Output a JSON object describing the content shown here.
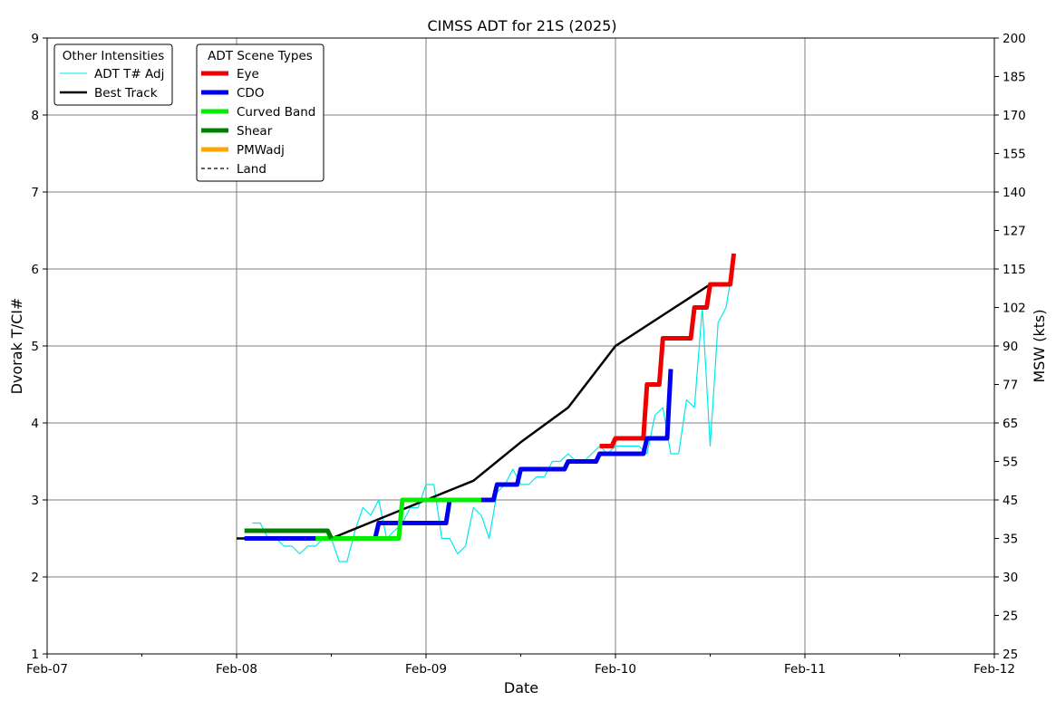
{
  "chart_data": {
    "type": "line",
    "title": "CIMSS ADT for 21S (2025)",
    "xlabel": "Date",
    "ylabel": "Dvorak T/CI#",
    "y2label": "MSW (kts)",
    "xlim": [
      "2025-02-07",
      "2025-02-12"
    ],
    "ylim": [
      1,
      9
    ],
    "grid": true,
    "x_tick_labels": [
      "Feb-07",
      "Feb-08",
      "Feb-09",
      "Feb-10",
      "Feb-11",
      "Feb-12"
    ],
    "y_ticks": [
      1,
      2,
      3,
      4,
      5,
      6,
      7,
      8,
      9
    ],
    "y2_ticks": [
      {
        "t": 1.0,
        "label": "25"
      },
      {
        "t": 1.5,
        "label": "25"
      },
      {
        "t": 2.0,
        "label": "30"
      },
      {
        "t": 2.5,
        "label": "35"
      },
      {
        "t": 3.0,
        "label": "45"
      },
      {
        "t": 3.5,
        "label": "55"
      },
      {
        "t": 4.0,
        "label": "65"
      },
      {
        "t": 4.5,
        "label": "77"
      },
      {
        "t": 5.0,
        "label": "90"
      },
      {
        "t": 5.5,
        "label": "102"
      },
      {
        "t": 6.0,
        "label": "115"
      },
      {
        "t": 6.5,
        "label": "127"
      },
      {
        "t": 7.0,
        "label": "140"
      },
      {
        "t": 7.5,
        "label": "155"
      },
      {
        "t": 8.0,
        "label": "170"
      },
      {
        "t": 8.5,
        "label": "185"
      },
      {
        "t": 9.0,
        "label": "200"
      }
    ],
    "legend_other": {
      "title": "Other Intensities",
      "placement": "top-left",
      "entries": [
        {
          "label": "ADT T# Adj",
          "color": "#00e8e8",
          "style": "thin"
        },
        {
          "label": "Best Track",
          "color": "#000000",
          "style": "solid"
        }
      ]
    },
    "legend_scene": {
      "title": "ADT Scene Types",
      "placement": "top-left",
      "entries": [
        {
          "label": "Eye",
          "color": "#ee0000",
          "style": "thick"
        },
        {
          "label": "CDO",
          "color": "#0000ee",
          "style": "thick"
        },
        {
          "label": "Curved Band",
          "color": "#00ee00",
          "style": "thick"
        },
        {
          "label": "Shear",
          "color": "#008000",
          "style": "thick"
        },
        {
          "label": "PMWadj",
          "color": "#ffa500",
          "style": "thick"
        },
        {
          "label": "Land",
          "color": "#000000",
          "style": "dashed"
        }
      ]
    },
    "series": [
      {
        "name": "ADT T# Adj",
        "color": "#00e8e8",
        "x": [
          "2025-02-08 02:00",
          "2025-02-08 03:00",
          "2025-02-08 04:00",
          "2025-02-08 05:00",
          "2025-02-08 06:00",
          "2025-02-08 07:00",
          "2025-02-08 08:00",
          "2025-02-08 09:00",
          "2025-02-08 10:00",
          "2025-02-08 11:00",
          "2025-02-08 12:00",
          "2025-02-08 13:00",
          "2025-02-08 14:00",
          "2025-02-08 15:00",
          "2025-02-08 16:00",
          "2025-02-08 17:00",
          "2025-02-08 18:00",
          "2025-02-08 19:00",
          "2025-02-08 20:00",
          "2025-02-08 21:00",
          "2025-02-08 22:00",
          "2025-02-08 23:00",
          "2025-02-09 00:00",
          "2025-02-09 01:00",
          "2025-02-09 02:00",
          "2025-02-09 03:00",
          "2025-02-09 04:00",
          "2025-02-09 05:00",
          "2025-02-09 06:00",
          "2025-02-09 07:00",
          "2025-02-09 08:00",
          "2025-02-09 09:00",
          "2025-02-09 10:00",
          "2025-02-09 11:00",
          "2025-02-09 12:00",
          "2025-02-09 13:00",
          "2025-02-09 14:00",
          "2025-02-09 15:00",
          "2025-02-09 16:00",
          "2025-02-09 17:00",
          "2025-02-09 18:00",
          "2025-02-09 19:00",
          "2025-02-09 20:00",
          "2025-02-09 21:00",
          "2025-02-09 22:00",
          "2025-02-09 23:00",
          "2025-02-10 00:00",
          "2025-02-10 01:00",
          "2025-02-10 02:00",
          "2025-02-10 03:00",
          "2025-02-10 04:00",
          "2025-02-10 05:00",
          "2025-02-10 06:00",
          "2025-02-10 07:00",
          "2025-02-10 08:00",
          "2025-02-10 09:00",
          "2025-02-10 10:00",
          "2025-02-10 11:00",
          "2025-02-10 12:00",
          "2025-02-10 13:00",
          "2025-02-10 14:00",
          "2025-02-10 15:00"
        ],
        "y": [
          2.7,
          2.7,
          2.5,
          2.5,
          2.4,
          2.4,
          2.3,
          2.4,
          2.4,
          2.5,
          2.5,
          2.2,
          2.2,
          2.6,
          2.9,
          2.8,
          3.0,
          2.5,
          2.6,
          2.7,
          2.9,
          2.9,
          3.2,
          3.2,
          2.5,
          2.5,
          2.3,
          2.4,
          2.9,
          2.8,
          2.5,
          3.1,
          3.2,
          3.4,
          3.2,
          3.2,
          3.3,
          3.3,
          3.5,
          3.5,
          3.6,
          3.5,
          3.5,
          3.6,
          3.7,
          3.6,
          3.7,
          3.7,
          3.7,
          3.7,
          3.6,
          4.1,
          4.2,
          3.6,
          3.6,
          4.3,
          4.2,
          5.5,
          3.7,
          5.3,
          5.5,
          6.1
        ]
      },
      {
        "name": "Best Track",
        "color": "#000000",
        "x": [
          "2025-02-08 00:00",
          "2025-02-08 12:00",
          "2025-02-09 00:00",
          "2025-02-09 06:00",
          "2025-02-09 12:00",
          "2025-02-09 18:00",
          "2025-02-10 00:00",
          "2025-02-10 06:00",
          "2025-02-10 12:00"
        ],
        "y": [
          2.5,
          2.5,
          3.0,
          3.25,
          3.75,
          4.2,
          5.0,
          5.4,
          5.8
        ]
      },
      {
        "name": "Eye",
        "color": "#ee0000",
        "x": [
          "2025-02-09 22:00",
          "2025-02-10 00:00",
          "2025-02-10 02:00",
          "2025-02-10 04:00",
          "2025-02-10 06:00",
          "2025-02-10 08:00",
          "2025-02-10 10:00",
          "2025-02-10 12:00",
          "2025-02-10 15:00"
        ],
        "y": [
          3.7,
          3.8,
          3.8,
          4.5,
          5.1,
          5.1,
          5.5,
          5.8,
          6.2
        ]
      },
      {
        "name": "CDO",
        "color": "#0000ee",
        "x": [
          "2025-02-08 01:00",
          "2025-02-08 18:00",
          "2025-02-09 03:00",
          "2025-02-09 09:00",
          "2025-02-09 12:00",
          "2025-02-09 18:00",
          "2025-02-09 22:00",
          "2025-02-10 04:00",
          "2025-02-10 07:00"
        ],
        "y": [
          2.5,
          2.7,
          3.0,
          3.2,
          3.4,
          3.5,
          3.6,
          3.8,
          4.7
        ]
      },
      {
        "name": "Curved Band",
        "color": "#00ee00",
        "x": [
          "2025-02-08 10:00",
          "2025-02-08 16:00",
          "2025-02-08 21:00",
          "2025-02-09 03:00",
          "2025-02-09 07:00"
        ],
        "y": [
          2.5,
          2.5,
          3.0,
          3.0,
          3.0
        ]
      },
      {
        "name": "Shear",
        "color": "#008000",
        "x": [
          "2025-02-08 01:00",
          "2025-02-08 09:00",
          "2025-02-08 12:00"
        ],
        "y": [
          2.6,
          2.6,
          2.5
        ]
      }
    ]
  }
}
